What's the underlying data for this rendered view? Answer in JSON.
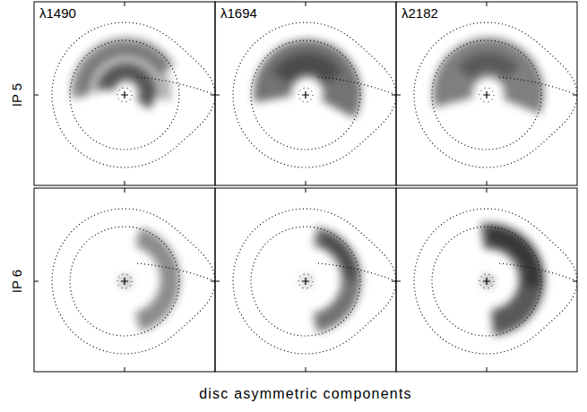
{
  "chart_data": {
    "type": "image_grid",
    "columns": [
      "λ1490",
      "λ1694",
      "λ2182"
    ],
    "rows": [
      "IP 5",
      "IP 6"
    ],
    "xlabel": "disc asymmetric components",
    "tick_labels": false
  }
}
